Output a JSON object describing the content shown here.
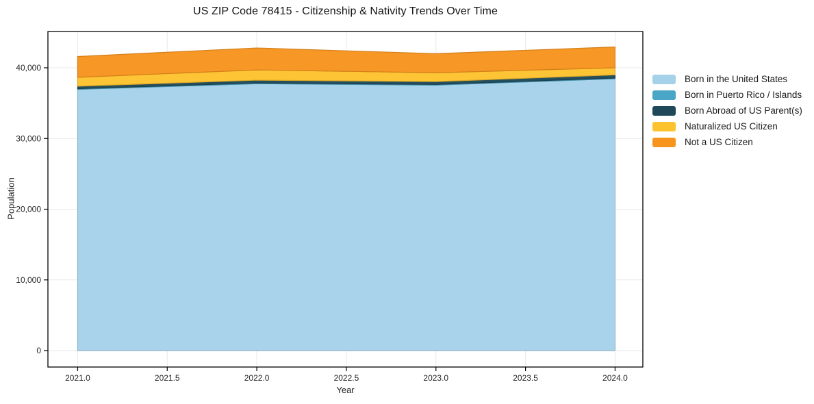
{
  "chart_data": {
    "type": "area",
    "stacked": true,
    "title": "US ZIP Code 78415 - Citizenship & Nativity Trends Over Time",
    "xlabel": "Year",
    "ylabel": "Population",
    "x": [
      2021,
      2022,
      2023,
      2024
    ],
    "series": [
      {
        "name": "Born in the United States",
        "color": "#a5d2e9",
        "values": [
          36950,
          37750,
          37550,
          38450
        ]
      },
      {
        "name": "Born in Puerto Rico / Islands",
        "color": "#4aa6c7",
        "values": [
          100,
          100,
          100,
          100
        ]
      },
      {
        "name": "Born Abroad of US Parent(s)",
        "color": "#1f4959",
        "values": [
          350,
          400,
          400,
          450
        ]
      },
      {
        "name": "Naturalized US Citizen",
        "color": "#fdc32f",
        "values": [
          1250,
          1450,
          1250,
          1000
        ]
      },
      {
        "name": "Not a US Citizen",
        "color": "#f7941e",
        "values": [
          2950,
          3100,
          2700,
          2950
        ]
      }
    ],
    "stack_totals": [
      41600,
      42800,
      42000,
      42900
    ],
    "x_ticks": [
      2021.0,
      2021.5,
      2022.0,
      2022.5,
      2023.0,
      2023.5,
      2024.0
    ],
    "x_tick_labels": [
      "2021.0",
      "2021.5",
      "2022.0",
      "2022.5",
      "2023.0",
      "2023.5",
      "2024.0"
    ],
    "y_ticks": [
      0,
      10000,
      20000,
      30000,
      40000
    ],
    "y_tick_labels": [
      "0",
      "10,000",
      "20,000",
      "30,000",
      "40,000"
    ],
    "xlim": [
      2020.834,
      2024.155
    ],
    "ylim": [
      -2324,
      45134
    ],
    "grid": true,
    "legend_position": "right-outside",
    "colors": {
      "grid": "#e8e8e8",
      "spine": "#000000",
      "tick_label": "#262626",
      "background": "#ffffff"
    }
  }
}
